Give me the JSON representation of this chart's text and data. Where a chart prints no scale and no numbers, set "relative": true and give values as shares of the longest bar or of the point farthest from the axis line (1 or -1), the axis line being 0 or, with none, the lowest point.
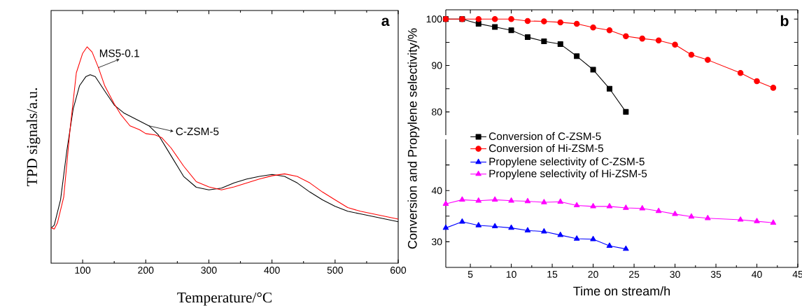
{
  "chart_data": [
    {
      "type": "line",
      "relative": true,
      "xlabel": "Temperature/°C",
      "ylabel": "TPD signals/a.u.",
      "xlim": [
        50,
        600
      ],
      "xticks": [
        100,
        200,
        300,
        400,
        500,
        600
      ],
      "annotations": [
        "a"
      ],
      "series": [
        {
          "name": "C-ZSM-5",
          "color": "#000000",
          "x": [
            50,
            55,
            65,
            75,
            85,
            95,
            105,
            112,
            120,
            135,
            150,
            165,
            185,
            205,
            220,
            240,
            260,
            280,
            300,
            320,
            340,
            360,
            380,
            400,
            420,
            440,
            460,
            480,
            500,
            520,
            540,
            560,
            580,
            600
          ],
          "values": [
            0.162,
            0.176,
            0.293,
            0.521,
            0.713,
            0.82,
            0.862,
            0.871,
            0.862,
            0.796,
            0.731,
            0.695,
            0.665,
            0.635,
            0.593,
            0.497,
            0.401,
            0.351,
            0.339,
            0.347,
            0.371,
            0.389,
            0.401,
            0.41,
            0.401,
            0.371,
            0.329,
            0.293,
            0.263,
            0.24,
            0.228,
            0.216,
            0.204,
            0.192
          ]
        },
        {
          "name": "MS5-0.1",
          "color": "#ff0000",
          "x": [
            50,
            55,
            60,
            70,
            80,
            90,
            100,
            107,
            115,
            125,
            135,
            150,
            160,
            175,
            190,
            200,
            215,
            225,
            240,
            260,
            280,
            300,
            320,
            340,
            360,
            380,
            400,
            420,
            440,
            460,
            480,
            500,
            520,
            540,
            560,
            580,
            600
          ],
          "values": [
            0.164,
            0.158,
            0.186,
            0.305,
            0.617,
            0.88,
            0.97,
            1.0,
            0.976,
            0.904,
            0.82,
            0.737,
            0.689,
            0.635,
            0.617,
            0.599,
            0.593,
            0.581,
            0.533,
            0.449,
            0.377,
            0.353,
            0.339,
            0.353,
            0.371,
            0.389,
            0.404,
            0.413,
            0.401,
            0.371,
            0.329,
            0.293,
            0.257,
            0.24,
            0.228,
            0.216,
            0.204
          ]
        }
      ]
    },
    {
      "type": "line",
      "ylabel": "Conversion and Propylene selectivity/%",
      "xlim": [
        2,
        45
      ],
      "xticks": [
        5,
        10,
        15,
        20,
        25,
        30,
        35,
        40,
        45
      ],
      "ylim": [
        75,
        102
      ],
      "yticks": [
        80,
        {
          "value": 85,
          "label": null
        },
        90,
        {
          "value": 95,
          "label": null
        },
        100
      ],
      "tick_labels": "y",
      "legend": "bottom left",
      "annotations": [
        "b"
      ],
      "series": [
        {
          "name": "Conversion of C-ZSM-5",
          "color": "#000000",
          "marker": "square",
          "x": [
            2,
            4,
            6,
            8,
            10,
            12,
            14,
            16,
            18,
            20,
            22,
            24
          ],
          "values": [
            100,
            100,
            99,
            98.3,
            97.6,
            96.1,
            95.2,
            94.6,
            92,
            89.1,
            85,
            80
          ]
        },
        {
          "name": "Conversion of Hi-ZSM-5",
          "color": "#ff0000",
          "marker": "circle",
          "x": [
            2,
            4,
            6,
            8,
            10,
            12,
            14,
            16,
            18,
            20,
            22,
            24,
            26,
            28,
            30,
            32,
            34,
            38,
            40,
            42
          ],
          "values": [
            100,
            100,
            100,
            100,
            100,
            99.6,
            99.5,
            99.3,
            99,
            98.2,
            97.6,
            96.3,
            95.8,
            95.4,
            94.5,
            92.3,
            91.2,
            88.4,
            86.6,
            85.2
          ]
        }
      ]
    },
    {
      "type": "line",
      "xlabel": "Time on stream/h",
      "xlim": [
        2,
        45
      ],
      "xticks": [
        5,
        10,
        15,
        20,
        25,
        30,
        35,
        40,
        45
      ],
      "ylim": [
        25,
        50
      ],
      "yticks": [
        30,
        {
          "value": 35,
          "label": null
        },
        40,
        {
          "value": 45,
          "label": null
        }
      ],
      "legend": "top left",
      "series": [
        {
          "name": "Propylene selectivity of C-ZSM-5",
          "color": "#0000ff",
          "marker": "triangle",
          "x": [
            2,
            4,
            6,
            8,
            10,
            12,
            14,
            16,
            18,
            20,
            22,
            24
          ],
          "values": [
            32.7,
            33.9,
            33.2,
            33.0,
            32.7,
            32.2,
            32.0,
            31.3,
            30.6,
            30.5,
            29.2,
            28.6
          ]
        },
        {
          "name": "Propylene selectivity of Hi-ZSM-5",
          "color": "#ff00ff",
          "marker": "triangle-down",
          "x": [
            2,
            4,
            6,
            8,
            10,
            12,
            14,
            16,
            18,
            20,
            22,
            24,
            26,
            28,
            30,
            32,
            34,
            38,
            40,
            42
          ],
          "values": [
            37.4,
            38.2,
            38.0,
            38.2,
            38.0,
            37.9,
            37.7,
            37.8,
            37.1,
            36.9,
            36.9,
            36.6,
            36.5,
            36.0,
            35.4,
            34.9,
            34.6,
            34.3,
            34.0,
            33.7
          ]
        }
      ]
    }
  ]
}
